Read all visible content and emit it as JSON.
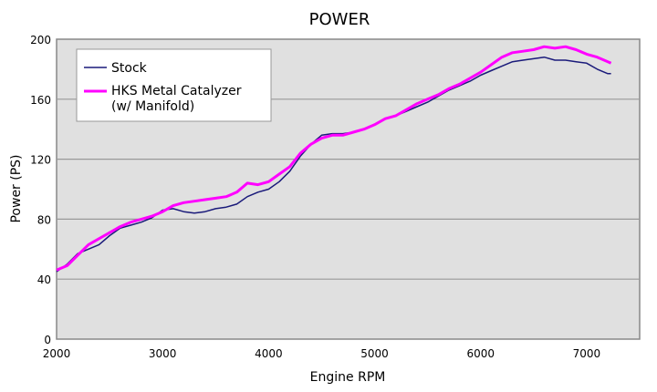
{
  "chart_data": {
    "type": "line",
    "title": "POWER",
    "xlabel": "Engine RPM",
    "ylabel": "Power (PS)",
    "xlim": [
      2000,
      7500
    ],
    "ylim": [
      0,
      200
    ],
    "xticks": [
      2000,
      3000,
      4000,
      5000,
      6000,
      7000
    ],
    "yticks": [
      0,
      40,
      80,
      120,
      160,
      200
    ],
    "grid": "horizontal",
    "legend_position": "top-left",
    "x": [
      2000,
      2100,
      2200,
      2300,
      2400,
      2500,
      2600,
      2700,
      2800,
      2900,
      3000,
      3100,
      3200,
      3300,
      3400,
      3500,
      3600,
      3700,
      3800,
      3900,
      4000,
      4100,
      4200,
      4300,
      4400,
      4500,
      4600,
      4700,
      4800,
      4900,
      5000,
      5100,
      5200,
      5300,
      5400,
      5500,
      5600,
      5700,
      5800,
      5900,
      6000,
      6100,
      6200,
      6300,
      6400,
      6500,
      6600,
      6700,
      6800,
      6900,
      7000,
      7100,
      7200,
      7230
    ],
    "series": [
      {
        "name": "Stock",
        "color": "#1a1a7a",
        "values": [
          45,
          50,
          57,
          60,
          63,
          69,
          74,
          76,
          78,
          81,
          86,
          87,
          85,
          84,
          85,
          87,
          88,
          90,
          95,
          98,
          100,
          105,
          112,
          122,
          130,
          136,
          137,
          137,
          138,
          140,
          143,
          147,
          149,
          152,
          155,
          158,
          162,
          166,
          169,
          172,
          176,
          179,
          182,
          185,
          186,
          187,
          188,
          186,
          186,
          185,
          184,
          180,
          177,
          177
        ]
      },
      {
        "name": "HKS Metal Catalyzer (w/ Manifold)",
        "color": "#ff00ff",
        "values": [
          46,
          49,
          56,
          63,
          67,
          71,
          75,
          78,
          80,
          82,
          85,
          89,
          91,
          92,
          93,
          94,
          95,
          98,
          104,
          103,
          105,
          110,
          115,
          124,
          130,
          134,
          136,
          136,
          138,
          140,
          143,
          147,
          149,
          153,
          157,
          160,
          163,
          167,
          170,
          174,
          178,
          183,
          188,
          191,
          192,
          193,
          195,
          194,
          195,
          193,
          190,
          188,
          185,
          184
        ]
      }
    ],
    "legend": {
      "stock": "Stock",
      "hks_line1": "HKS Metal Catalyzer",
      "hks_line2": "(w/ Manifold)"
    }
  }
}
